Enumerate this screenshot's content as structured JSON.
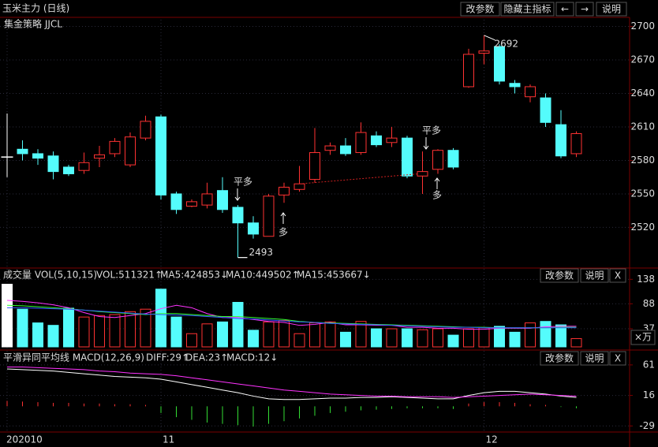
{
  "header": {
    "title": "玉米主力 (日线)",
    "buttons": [
      "改参数",
      "隐藏主指标",
      "←",
      "→",
      "说明"
    ]
  },
  "chart_data": [
    {
      "type": "candlestick",
      "subtitle": "集金策略 JJCL",
      "categories": [
        "202010",
        null,
        null,
        null,
        null,
        null,
        null,
        null,
        null,
        null,
        "11",
        null,
        null,
        null,
        null,
        null,
        null,
        null,
        null,
        null,
        null,
        null,
        null,
        null,
        null,
        null,
        null,
        null,
        null,
        null,
        null,
        "12",
        null,
        null,
        null,
        null,
        null,
        null
      ],
      "open": [
        2583,
        2590,
        2586,
        2584,
        2574,
        2571,
        2582,
        2586,
        2576,
        2600,
        2619,
        2550,
        2539,
        2540,
        2553,
        2538,
        2524,
        2512,
        2549,
        2554,
        2563,
        2589,
        2593,
        2587,
        2602,
        2596,
        2600,
        2566,
        2572,
        2589,
        2646,
        2676,
        2682,
        2649,
        2637,
        2636,
        2612,
        2586
      ],
      "high": [
        2622,
        2598,
        2590,
        2588,
        2576,
        2587,
        2593,
        2600,
        2605,
        2620,
        2621,
        2552,
        2545,
        2560,
        2565,
        2540,
        2530,
        2550,
        2560,
        2575,
        2609,
        2596,
        2600,
        2614,
        2606,
        2610,
        2602,
        2588,
        2590,
        2591,
        2680,
        2692,
        2684,
        2652,
        2648,
        2640,
        2625,
        2606
      ],
      "low": [
        2565,
        2580,
        2576,
        2563,
        2566,
        2568,
        2574,
        2583,
        2574,
        2598,
        2545,
        2532,
        2538,
        2537,
        2533,
        2493,
        2510,
        2512,
        2542,
        2552,
        2560,
        2585,
        2584,
        2585,
        2592,
        2592,
        2564,
        2550,
        2568,
        2572,
        2645,
        2666,
        2648,
        2640,
        2632,
        2610,
        2582,
        2583
      ],
      "close": [
        2583,
        2586,
        2582,
        2570,
        2568,
        2578,
        2585,
        2597,
        2601,
        2615,
        2549,
        2536,
        2543,
        2550,
        2536,
        2524,
        2514,
        2548,
        2556,
        2559,
        2587,
        2593,
        2586,
        2605,
        2594,
        2600,
        2566,
        2570,
        2589,
        2574,
        2675,
        2678,
        2651,
        2646,
        2646,
        2614,
        2584,
        2604
      ],
      "up_color": "#ff3232",
      "down_color": "#54fcfc",
      "flat_color": "#ffffff",
      "ylim": [
        2485,
        2706
      ],
      "yticks": [
        2520,
        2550,
        2580,
        2610,
        2640,
        2670,
        2700
      ],
      "signals": [
        {
          "text": "平多",
          "color": "#33dd33"
        },
        {
          "text": "多",
          "color": "#ff3232"
        },
        {
          "text": "平多",
          "color": "#33dd33"
        },
        {
          "text": "多",
          "color": "#ff3232"
        }
      ],
      "low_label": 2493,
      "high_label": 2692
    },
    {
      "type": "volume",
      "title": "成交量 VOL(5,10,15)",
      "readout": "VOL:511321↑",
      "buttons": [
        "改参数",
        "说明",
        "X"
      ],
      "unit_label": "×万",
      "values": [
        128,
        77,
        49,
        44,
        79,
        61,
        64,
        66,
        72,
        77,
        118,
        61,
        27,
        47,
        51,
        91,
        34,
        51,
        54,
        27,
        49,
        51,
        30,
        52,
        37,
        37,
        37,
        35,
        37,
        24,
        37,
        39,
        42,
        30,
        49,
        52,
        45,
        17
      ],
      "series": [
        {
          "name": "MA5:424853↓",
          "color": "#ff33ff",
          "values": [
            95,
            93,
            90,
            86,
            80,
            70,
            62,
            60,
            64,
            68,
            78,
            85,
            80,
            68,
            60,
            60,
            56,
            52,
            50,
            44,
            46,
            50,
            45,
            45,
            44,
            44,
            40,
            40,
            38,
            38,
            36,
            36,
            38,
            38,
            38,
            41,
            42,
            42
          ]
        },
        {
          "name": "MA10:449502↑",
          "color": "#33ff33",
          "values": [
            85,
            84,
            82,
            80,
            78,
            75,
            72,
            70,
            68,
            66,
            68,
            68,
            66,
            64,
            62,
            62,
            60,
            58,
            56,
            52,
            50,
            49,
            48,
            47,
            46,
            45,
            44,
            43,
            42,
            41,
            40,
            40,
            39,
            39,
            39,
            39,
            40,
            40
          ]
        },
        {
          "name": "MA15:453667↓",
          "color": "#3355ff",
          "values": [
            80,
            80,
            79,
            78,
            77,
            75,
            73,
            71,
            69,
            67,
            66,
            65,
            64,
            62,
            60,
            58,
            57,
            55,
            53,
            51,
            50,
            48,
            47,
            46,
            45,
            44,
            43,
            42,
            41,
            40,
            40,
            39,
            39,
            39,
            39,
            39,
            39,
            39
          ]
        }
      ],
      "ylim": [
        0,
        153
      ],
      "yticks": [
        37,
        88,
        138
      ]
    },
    {
      "type": "macd",
      "title": "平滑异同平均线 MACD(12,26,9)",
      "buttons": [
        "改参数",
        "说明",
        "X"
      ],
      "series": [
        {
          "name": "DIFF:29↑",
          "color": "#ffffff",
          "values": [
            55,
            54,
            53,
            52,
            50,
            48,
            46,
            44,
            43,
            42,
            40,
            36,
            32,
            28,
            24,
            20,
            15,
            11,
            10,
            10,
            11,
            12,
            12,
            13,
            13,
            14,
            13,
            12,
            11,
            11,
            16,
            20,
            22,
            22,
            20,
            18,
            15,
            13
          ]
        },
        {
          "name": "DEA:23↑",
          "color": "#ff33ff",
          "values": [
            58,
            58,
            57,
            56,
            55,
            54,
            52,
            51,
            49,
            48,
            47,
            45,
            42,
            39,
            36,
            33,
            30,
            27,
            24,
            22,
            20,
            18,
            17,
            16,
            15,
            15,
            14,
            14,
            14,
            13,
            14,
            15,
            16,
            17,
            18,
            17,
            16,
            15
          ]
        },
        {
          "name": "MACD:12↓",
          "color": "#33dd33",
          "type": "bar",
          "values": [
            8,
            7,
            6,
            5,
            5,
            4,
            4,
            3,
            3,
            2,
            -10,
            -16,
            -20,
            -24,
            -26,
            -28,
            -30,
            -26,
            -22,
            -18,
            -14,
            -10,
            -8,
            -6,
            -5,
            -4,
            -3,
            -3,
            -3,
            -4,
            4,
            6,
            6,
            5,
            3,
            2,
            -1,
            -3
          ]
        }
      ],
      "up_color": "#ff3232",
      "down_color": "#33dd33",
      "ylim": [
        -38,
        76
      ],
      "yticks": [
        -29,
        16,
        61
      ]
    }
  ]
}
